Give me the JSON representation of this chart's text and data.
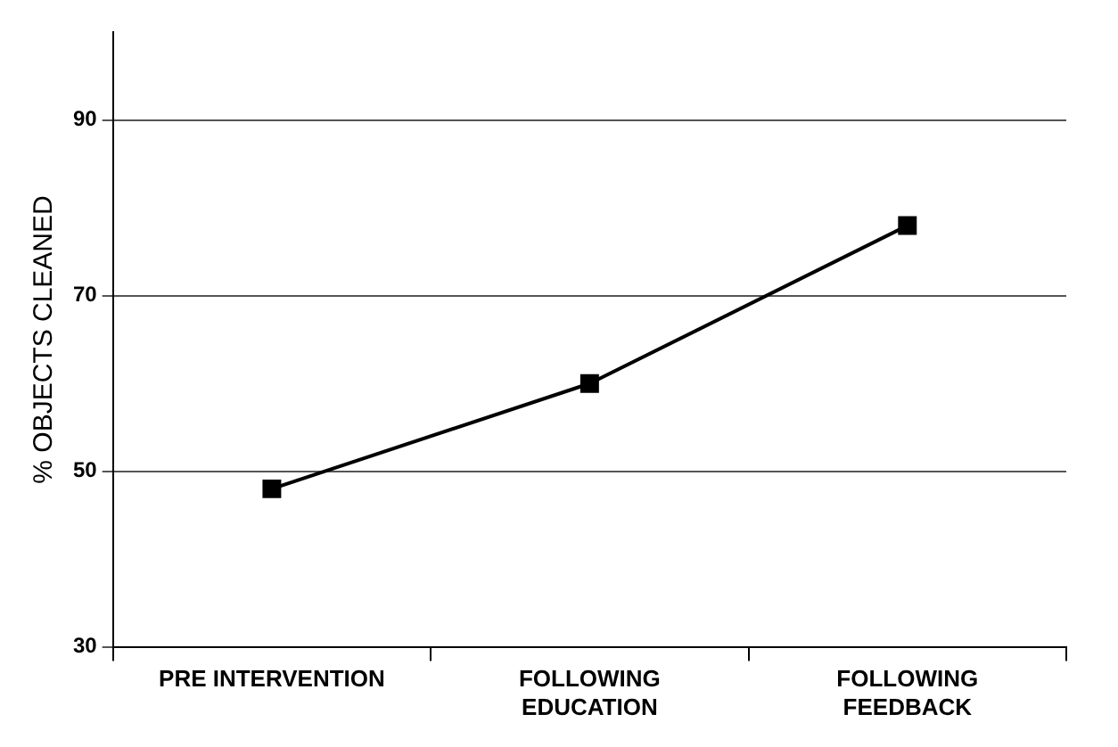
{
  "chart_data": {
    "type": "line",
    "ylabel": "% OBJECTS CLEANED",
    "categories": [
      "PRE INTERVENTION",
      "FOLLOWING\nEDUCATION",
      "FOLLOWING\nFEEDBACK"
    ],
    "series": [
      {
        "color": "#000000",
        "values": [
          48,
          60,
          78
        ]
      }
    ],
    "ylim": [
      30,
      100
    ],
    "yticks": [
      30,
      50,
      70,
      90
    ],
    "grid": "y",
    "legend": false,
    "marker": "square",
    "line_style": "solid"
  }
}
